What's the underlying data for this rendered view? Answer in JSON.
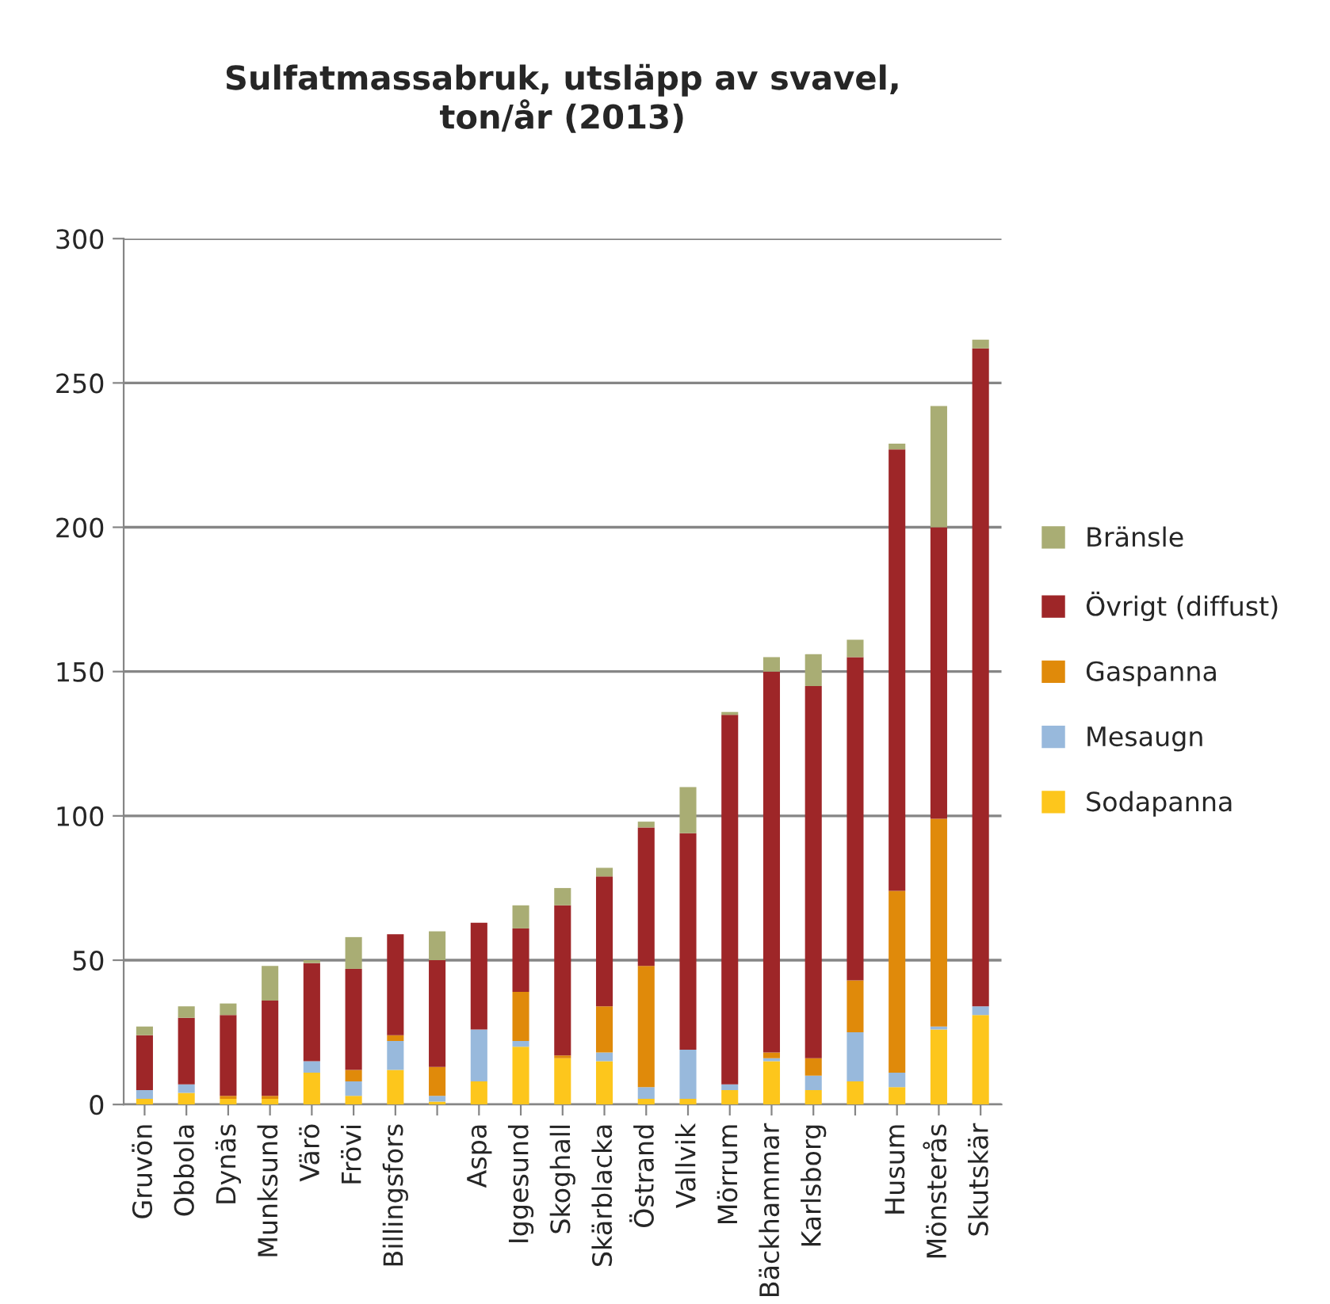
{
  "chart_data": {
    "type": "bar",
    "stacked": true,
    "title": "Sulfatmassabruk, utsläpp av svavel,\nton/år (2013)",
    "categories": [
      "Gruvön",
      "Obbola",
      "Dynäs",
      "Munksund",
      "Värö",
      "Frövi",
      "Billingsfors",
      null,
      "Aspa",
      "Iggesund",
      "Skoghall",
      "Skärblacka",
      "Östrand",
      "Vallvik",
      "Mörrum",
      "Bäckhammar",
      "Karlsborg",
      null,
      "Husum",
      "Mönsterås",
      "Skutskär"
    ],
    "series": [
      {
        "name": "Sodapanna",
        "color": "#fdc61c",
        "values": [
          2,
          4,
          2,
          2,
          11,
          3,
          12,
          1,
          8,
          20,
          16,
          15,
          2,
          2,
          5,
          15,
          5,
          8,
          6,
          26,
          31
        ]
      },
      {
        "name": "Mesaugn",
        "color": "#98b9dc",
        "values": [
          3,
          3,
          0,
          0,
          4,
          5,
          10,
          2,
          18,
          2,
          0,
          3,
          4,
          17,
          2,
          1,
          5,
          17,
          5,
          1,
          3
        ]
      },
      {
        "name": "Gaspanna",
        "color": "#e08a0a",
        "values": [
          0,
          0,
          1,
          1,
          0,
          4,
          2,
          10,
          0,
          17,
          1,
          16,
          42,
          0,
          0,
          2,
          6,
          18,
          63,
          72,
          0
        ]
      },
      {
        "name": "Övrigt (diffust)",
        "color": "#9e2628",
        "values": [
          19,
          23,
          28,
          33,
          34,
          35,
          35,
          37,
          37,
          22,
          52,
          45,
          48,
          75,
          128,
          132,
          129,
          112,
          153,
          101,
          228
        ]
      },
      {
        "name": "Bränsle",
        "color": "#a9ad74",
        "values": [
          3,
          4,
          4,
          12,
          1,
          11,
          0,
          10,
          0,
          8,
          6,
          3,
          2,
          16,
          1,
          5,
          11,
          6,
          2,
          42,
          3
        ]
      }
    ],
    "ylim": [
      0,
      300
    ],
    "yticks": [
      0,
      50,
      100,
      150,
      200,
      250,
      300
    ],
    "grid": "y",
    "legend": "right"
  }
}
